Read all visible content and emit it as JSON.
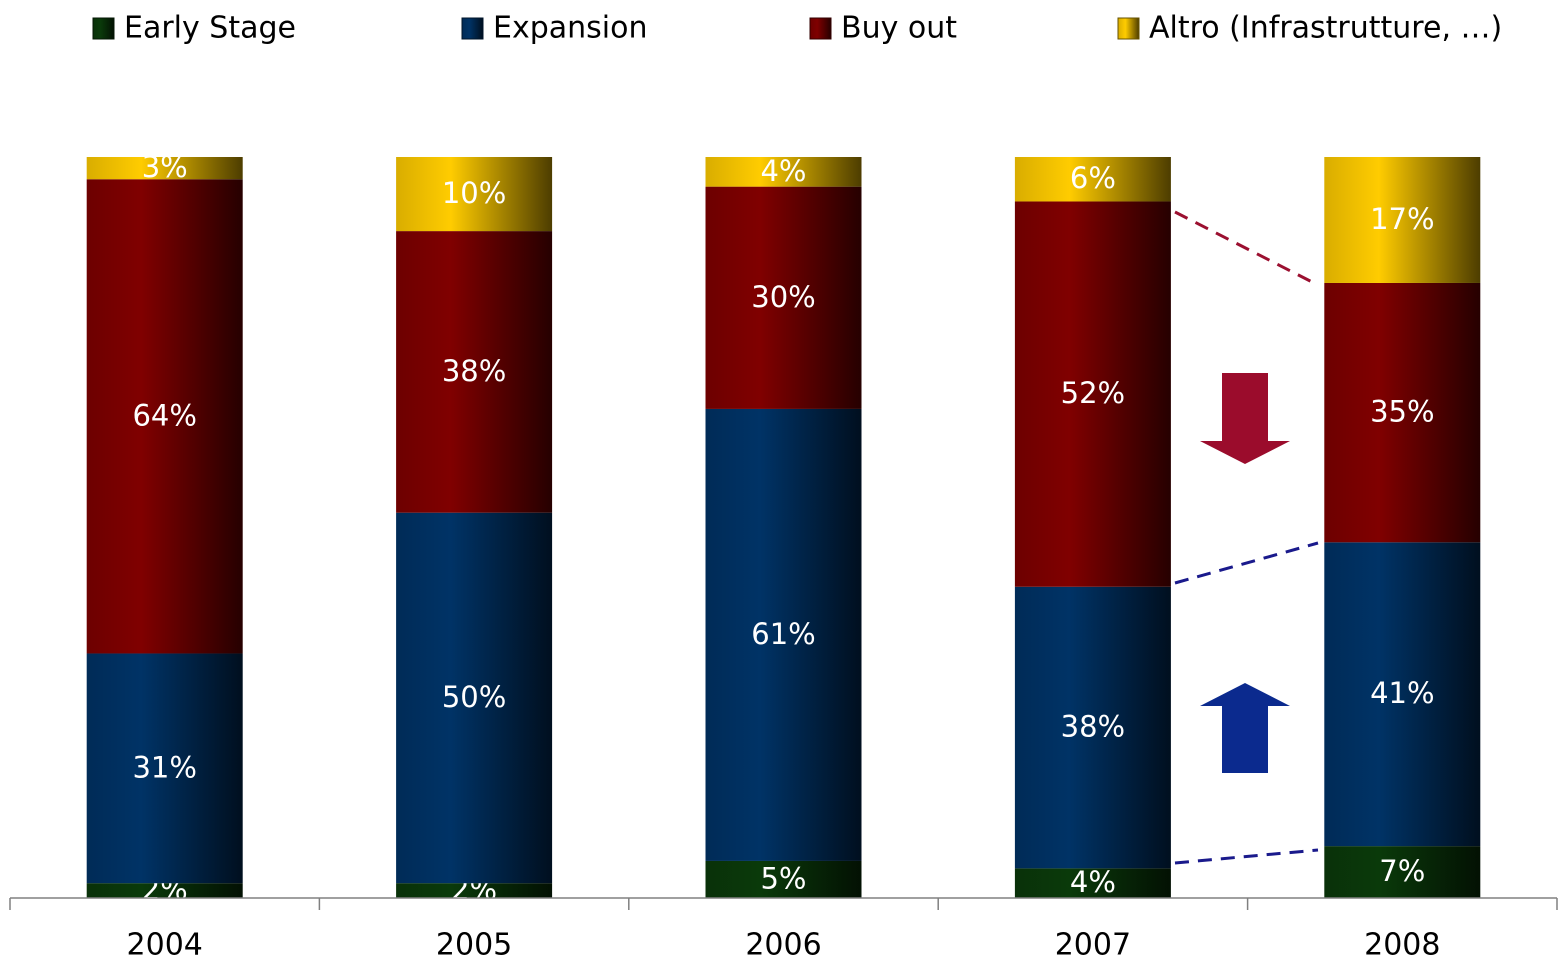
{
  "chart_data": {
    "type": "stacked_bar",
    "categories": [
      "2004",
      "2005",
      "2006",
      "2007",
      "2008"
    ],
    "series": [
      {
        "name": "Early Stage",
        "color": "#0a3a0a",
        "values": [
          2,
          2,
          5,
          4,
          7
        ],
        "value_labels": [
          "2%",
          "2%",
          "5%",
          "4%",
          "7%"
        ]
      },
      {
        "name": "Expansion",
        "color": "#003366",
        "values": [
          31,
          50,
          61,
          38,
          41
        ],
        "value_labels": [
          "31%",
          "50%",
          "61%",
          "38%",
          "41%"
        ]
      },
      {
        "name": "Buy out",
        "color": "#800000",
        "values": [
          64,
          38,
          30,
          52,
          35
        ],
        "value_labels": [
          "64%",
          "38%",
          "30%",
          "52%",
          "35%"
        ]
      },
      {
        "name": "Altro (Infrastrutture, …)",
        "color": "#ffcc00",
        "values": [
          3,
          10,
          4,
          6,
          17
        ],
        "value_labels": [
          "3%",
          "10%",
          "4%",
          "6%",
          "17%"
        ]
      }
    ],
    "ylim": [
      0,
      100
    ],
    "legend": "top"
  }
}
